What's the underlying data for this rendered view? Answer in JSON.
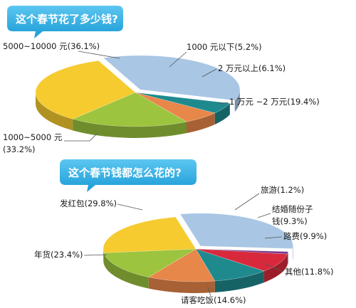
{
  "chart_data": [
    {
      "type": "pie",
      "title": "这个春节花了多少钱?",
      "unit": "%",
      "slices": [
        {
          "label": "5000~10000 元(36.1%)",
          "value": 36.1,
          "color": "#a9c6e4"
        },
        {
          "label": "1000 元以下(5.2%)",
          "value": 5.2,
          "color": "#1f8a8e"
        },
        {
          "label": "2 万元以上(6.1%)",
          "value": 6.1,
          "color": "#e8874a"
        },
        {
          "label": "1 万元 ~2 万元(19.4%)",
          "value": 19.4,
          "color": "#9cc43e"
        },
        {
          "label_lines": [
            "1000~5000 元",
            "(33.2%)"
          ],
          "label": "1000~5000 元 (33.2%)",
          "value": 33.2,
          "color": "#f5cb2f"
        }
      ]
    },
    {
      "type": "pie",
      "title": "这个春节钱都怎么花的?",
      "unit": "%",
      "slices": [
        {
          "label": "发红包(29.8%)",
          "value": 29.8,
          "color": "#a9c6e4"
        },
        {
          "label": "旅游(1.2%)",
          "value": 1.2,
          "color": "#7a3a8c"
        },
        {
          "label_lines": [
            "结婚随份子",
            "钱(9.3%)"
          ],
          "label": "结婚随份子钱(9.3%)",
          "value": 9.3,
          "color": "#d8293c"
        },
        {
          "label": "路费(9.9%)",
          "value": 9.9,
          "color": "#1f8a8e"
        },
        {
          "label": "其他(11.8%)",
          "value": 11.8,
          "color": "#e8874a"
        },
        {
          "label": "请客吃饭(14.6%)",
          "value": 14.6,
          "color": "#9cc43e"
        },
        {
          "label": "年货(23.4%)",
          "value": 23.4,
          "color": "#f5cb2f"
        }
      ]
    }
  ],
  "bubble_color": "#1fa8e0"
}
